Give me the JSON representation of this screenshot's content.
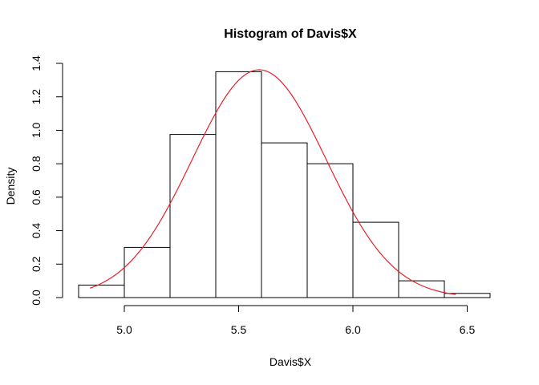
{
  "chart_data": {
    "type": "bar",
    "title": "Histogram of Davis$X",
    "xlabel": "Davis$X",
    "ylabel": "Density",
    "xlim": [
      4.8,
      6.6
    ],
    "ylim": [
      0,
      1.4
    ],
    "bins": [
      {
        "from": 4.8,
        "to": 5.0,
        "density": 0.075
      },
      {
        "from": 5.0,
        "to": 5.2,
        "density": 0.3
      },
      {
        "from": 5.2,
        "to": 5.4,
        "density": 0.975
      },
      {
        "from": 5.4,
        "to": 5.6,
        "density": 1.35
      },
      {
        "from": 5.6,
        "to": 5.8,
        "density": 0.925
      },
      {
        "from": 5.8,
        "to": 6.0,
        "density": 0.8
      },
      {
        "from": 6.0,
        "to": 6.2,
        "density": 0.45
      },
      {
        "from": 6.2,
        "to": 6.4,
        "density": 0.1
      },
      {
        "from": 6.4,
        "to": 6.6,
        "density": 0.025
      }
    ],
    "x_ticks": [
      5.0,
      5.5,
      6.0,
      6.5
    ],
    "x_tick_labels": [
      "5.0",
      "5.5",
      "6.0",
      "6.5"
    ],
    "y_ticks": [
      0.0,
      0.2,
      0.4,
      0.6,
      0.8,
      1.0,
      1.2,
      1.4
    ],
    "y_tick_labels": [
      "0.0",
      "0.2",
      "0.4",
      "0.6",
      "0.8",
      "1.0",
      "1.2",
      "1.4"
    ],
    "density_curve": {
      "type": "normal",
      "mean": 5.59,
      "sd": 0.293,
      "x_range": [
        4.85,
        6.45
      ],
      "color": "#e8202a"
    }
  }
}
